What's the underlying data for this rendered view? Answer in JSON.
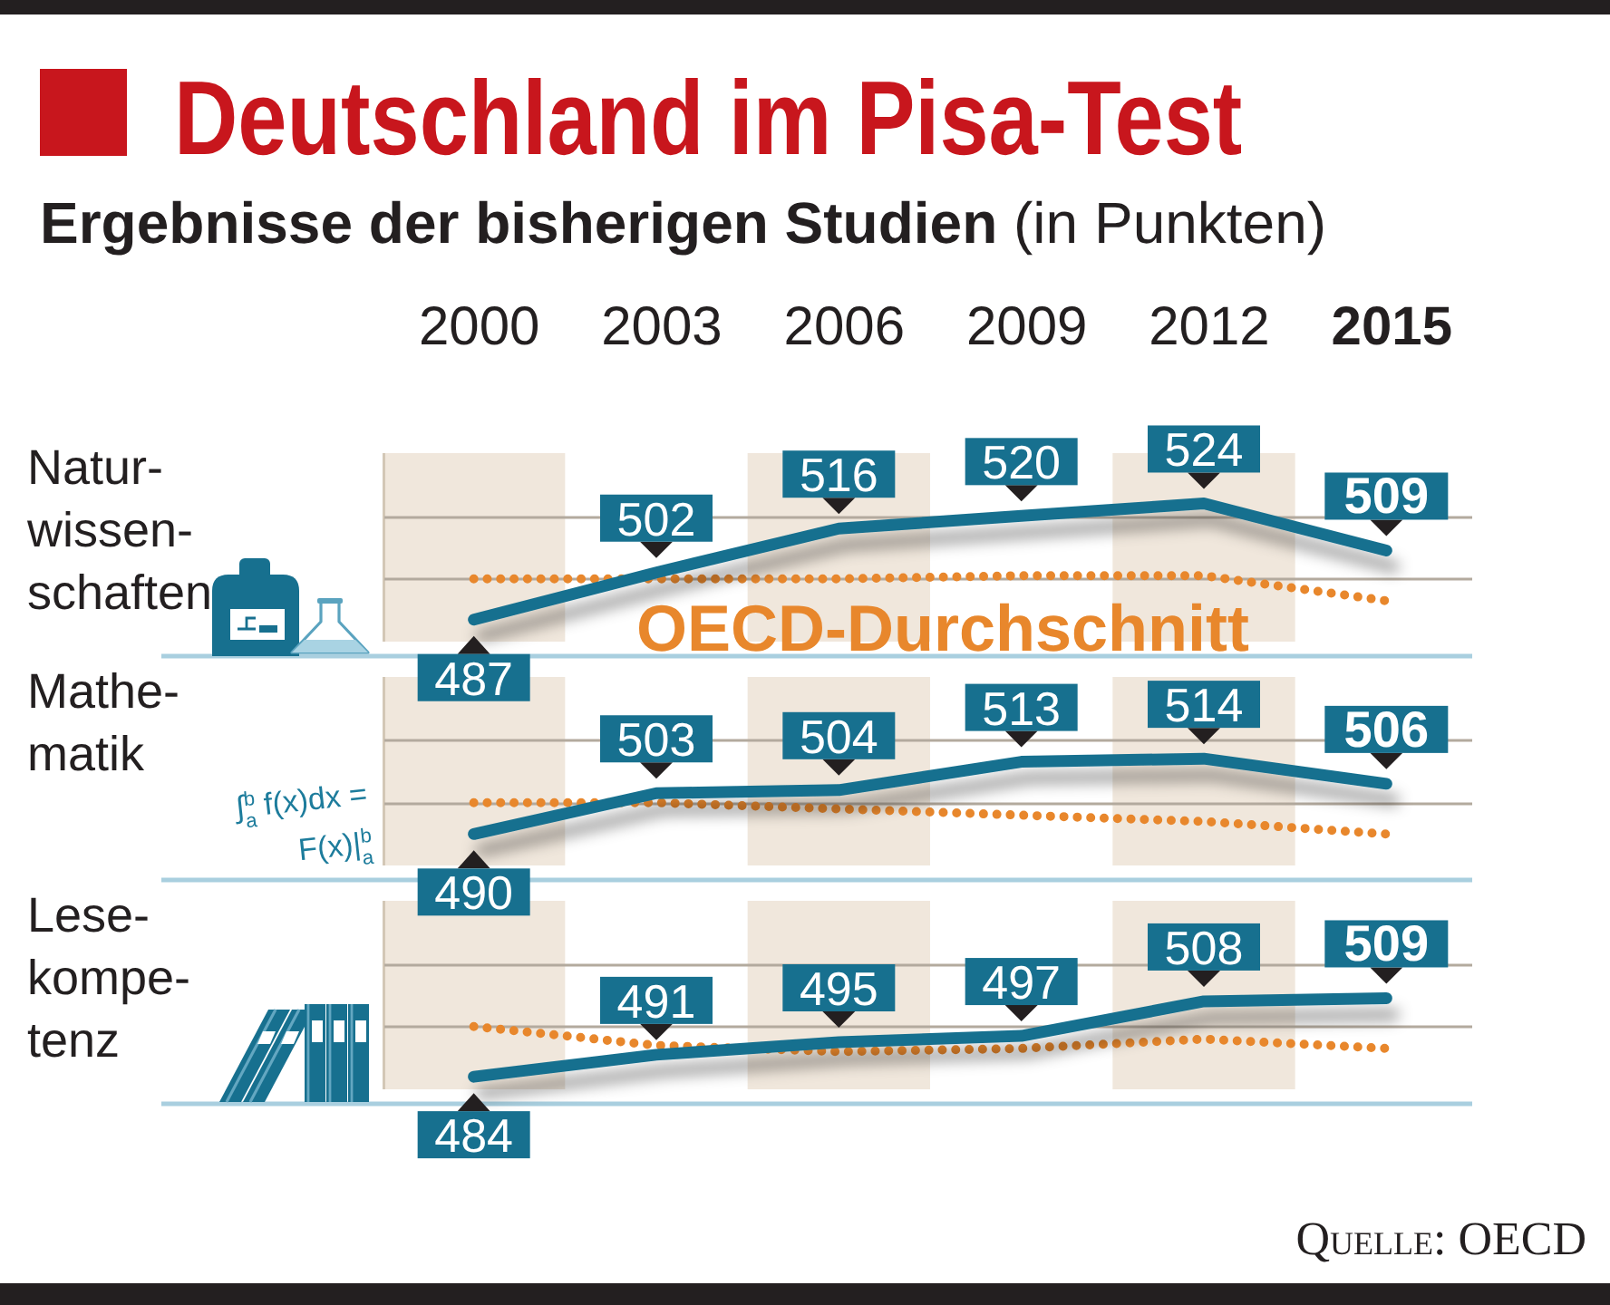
{
  "chart_data": [
    {
      "type": "line",
      "title": "Deutschland im Pisa-Test",
      "subtitle": "Ergebnisse der bisherigen Studien (in Punkten)",
      "ylabel": "Natur-\nwissen-\nschaften",
      "categories": [
        "2000",
        "2003",
        "2006",
        "2009",
        "2012",
        "2015"
      ],
      "series": [
        {
          "color": "#17708f",
          "line_style": "solid",
          "values": [
            487,
            502,
            516,
            520,
            524,
            509
          ],
          "value_labels": [
            "487",
            "502",
            "516",
            "520",
            "524",
            "509"
          ]
        },
        {
          "name": "OECD-Durchschnitt",
          "color": "#e8872c",
          "line_style": "dotted",
          "values": [
            500,
            500,
            500,
            501,
            501,
            493
          ]
        }
      ],
      "ylim": [
        480,
        540
      ],
      "tick_labels": "x",
      "ref_lines": [
        {
          "axis": "y",
          "value": 500,
          "color": "#b3aa9e"
        },
        {
          "axis": "y",
          "value": 520,
          "color": "#b3aa9e"
        }
      ],
      "bands": [
        {
          "axis": "x",
          "from": "2000",
          "to": "2000",
          "color": "#f0e7dc"
        },
        {
          "axis": "x",
          "from": "2006",
          "to": "2006",
          "color": "#f0e7dc"
        },
        {
          "axis": "x",
          "from": "2012",
          "to": "2012",
          "color": "#f0e7dc"
        }
      ]
    },
    {
      "type": "line",
      "ylabel": "Mathe-\nmatik",
      "categories": [
        "2000",
        "2003",
        "2006",
        "2009",
        "2012",
        "2015"
      ],
      "series": [
        {
          "color": "#17708f",
          "line_style": "solid",
          "values": [
            490,
            503,
            504,
            513,
            514,
            506
          ],
          "value_labels": [
            "490",
            "503",
            "504",
            "513",
            "514",
            "506"
          ]
        },
        {
          "color": "#e8872c",
          "line_style": "dotted",
          "values": [
            500,
            500,
            498,
            496,
            494,
            490
          ]
        }
      ],
      "ylim": [
        480,
        540
      ],
      "tick_labels": false,
      "ref_lines": [
        {
          "axis": "y",
          "value": 500,
          "color": "#b3aa9e"
        },
        {
          "axis": "y",
          "value": 520,
          "color": "#b3aa9e"
        }
      ],
      "bands": [
        {
          "axis": "x",
          "from": "2000",
          "to": "2000",
          "color": "#f0e7dc"
        },
        {
          "axis": "x",
          "from": "2006",
          "to": "2006",
          "color": "#f0e7dc"
        },
        {
          "axis": "x",
          "from": "2012",
          "to": "2012",
          "color": "#f0e7dc"
        }
      ],
      "annotations": [
        "∫$^{b}$$_{a}$ f(x)dx =\nF(x)|$^{b}$$_{a}$"
      ]
    },
    {
      "type": "line",
      "ylabel": "Lese-\nkompe-\ntenz",
      "categories": [
        "2000",
        "2003",
        "2006",
        "2009",
        "2012",
        "2015"
      ],
      "series": [
        {
          "color": "#17708f",
          "line_style": "solid",
          "values": [
            484,
            491,
            495,
            497,
            508,
            509
          ],
          "value_labels": [
            "484",
            "491",
            "495",
            "497",
            "508",
            "509"
          ]
        },
        {
          "color": "#e8872c",
          "line_style": "dotted",
          "values": [
            500,
            494,
            492,
            493,
            496,
            493
          ]
        }
      ],
      "ylim": [
        480,
        540
      ],
      "tick_labels": false,
      "ref_lines": [
        {
          "axis": "y",
          "value": 500,
          "color": "#b3aa9e"
        },
        {
          "axis": "y",
          "value": 520,
          "color": "#b3aa9e"
        }
      ],
      "bands": [
        {
          "axis": "x",
          "from": "2000",
          "to": "2000",
          "color": "#f0e7dc"
        },
        {
          "axis": "x",
          "from": "2006",
          "to": "2006",
          "color": "#f0e7dc"
        },
        {
          "axis": "x",
          "from": "2012",
          "to": "2012",
          "color": "#f0e7dc"
        }
      ],
      "annotations": [
        "Quelle: OECD"
      ]
    }
  ]
}
